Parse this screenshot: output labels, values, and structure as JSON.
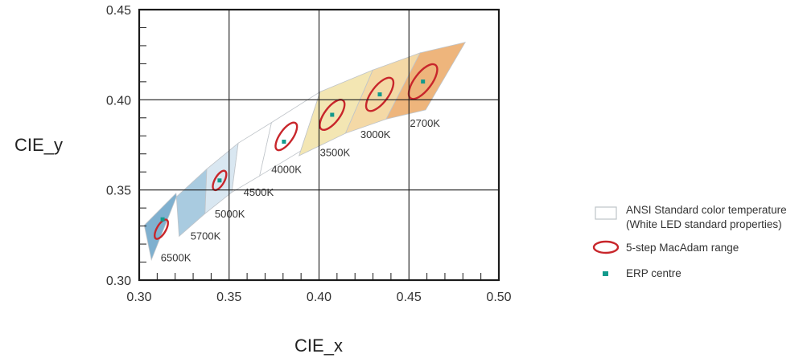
{
  "chart_data": {
    "type": "scatter",
    "title": "",
    "xlabel": "CIE_x",
    "ylabel": "CIE_y",
    "xlim": [
      0.3,
      0.5
    ],
    "ylim": [
      0.3,
      0.45
    ],
    "x_ticks": [
      "0.30",
      "0.35",
      "0.40",
      "0.45",
      "0.50"
    ],
    "y_ticks": [
      "0.30",
      "0.35",
      "0.40",
      "0.45"
    ],
    "grid": true,
    "ansi_quadrangles": [
      {
        "cct": "6500K",
        "color": "#7fb0cf",
        "corners": [
          [
            0.3028,
            0.3304
          ],
          [
            0.3205,
            0.3481
          ],
          [
            0.3207,
            0.3462
          ],
          [
            0.3068,
            0.3113
          ]
        ]
      },
      {
        "cct": "5700K",
        "color": "#a9cbe0",
        "corners": [
          [
            0.3207,
            0.3462
          ],
          [
            0.3376,
            0.3616
          ],
          [
            0.3366,
            0.3369
          ],
          [
            0.3222,
            0.3243
          ]
        ]
      },
      {
        "cct": "5000K",
        "color": "#d9e7f1",
        "corners": [
          [
            0.3376,
            0.3616
          ],
          [
            0.3551,
            0.376
          ],
          [
            0.3515,
            0.3487
          ],
          [
            0.3366,
            0.3369
          ]
        ]
      },
      {
        "cct": "4500K",
        "color": "#ffffff",
        "corners": [
          [
            0.3551,
            0.376
          ],
          [
            0.3736,
            0.3874
          ],
          [
            0.367,
            0.3578
          ],
          [
            0.3515,
            0.3487
          ]
        ]
      },
      {
        "cct": "4000K",
        "color": "#ffffff",
        "corners": [
          [
            0.3736,
            0.3874
          ],
          [
            0.4006,
            0.4044
          ],
          [
            0.3898,
            0.3716
          ],
          [
            0.367,
            0.3578
          ]
        ]
      },
      {
        "cct": "3500K",
        "color": "#f3e6b3",
        "corners": [
          [
            0.4006,
            0.4044
          ],
          [
            0.4299,
            0.4165
          ],
          [
            0.4147,
            0.3814
          ],
          [
            0.3889,
            0.369
          ]
        ]
      },
      {
        "cct": "3000K",
        "color": "#f4d9a6",
        "corners": [
          [
            0.4299,
            0.4165
          ],
          [
            0.4562,
            0.426
          ],
          [
            0.4373,
            0.3893
          ],
          [
            0.4147,
            0.3814
          ]
        ]
      },
      {
        "cct": "2700K",
        "color": "#eeb57c",
        "corners": [
          [
            0.4562,
            0.426
          ],
          [
            0.4813,
            0.4319
          ],
          [
            0.4593,
            0.3944
          ],
          [
            0.4373,
            0.3893
          ]
        ]
      }
    ],
    "macadam_ellipses": [
      {
        "cct": "6500K",
        "center": [
          0.3123,
          0.3282
        ],
        "a": 0.006,
        "b": 0.0025,
        "angle_deg": 60
      },
      {
        "cct": "5000K",
        "center": [
          0.3447,
          0.3553
        ],
        "a": 0.006,
        "b": 0.0026,
        "angle_deg": 60
      },
      {
        "cct": "4000K",
        "center": [
          0.3818,
          0.3797
        ],
        "a": 0.009,
        "b": 0.0036,
        "angle_deg": 55
      },
      {
        "cct": "3500K",
        "center": [
          0.4073,
          0.3917
        ],
        "a": 0.01,
        "b": 0.0042,
        "angle_deg": 53
      },
      {
        "cct": "3000K",
        "center": [
          0.4338,
          0.403
        ],
        "a": 0.011,
        "b": 0.0046,
        "angle_deg": 53
      },
      {
        "cct": "2700K",
        "center": [
          0.4578,
          0.4101
        ],
        "a": 0.0115,
        "b": 0.0048,
        "angle_deg": 53
      }
    ],
    "erp_centres": [
      {
        "cct": "6500K",
        "x": 0.313,
        "y": 0.3337
      },
      {
        "cct": "5000K",
        "x": 0.3447,
        "y": 0.3553
      },
      {
        "cct": "4000K",
        "x": 0.3805,
        "y": 0.3768
      },
      {
        "cct": "3500K",
        "x": 0.4073,
        "y": 0.3917
      },
      {
        "cct": "3000K",
        "x": 0.4338,
        "y": 0.403
      },
      {
        "cct": "2700K",
        "x": 0.4578,
        "y": 0.4101
      }
    ],
    "cct_labels": [
      {
        "text": "6500K",
        "x": 0.312,
        "y": 0.3105
      },
      {
        "text": "5700K",
        "x": 0.3285,
        "y": 0.3225
      },
      {
        "text": "5000K",
        "x": 0.342,
        "y": 0.3348
      },
      {
        "text": "4500K",
        "x": 0.358,
        "y": 0.3468
      },
      {
        "text": "4000K",
        "x": 0.3735,
        "y": 0.3595
      },
      {
        "text": "3500K",
        "x": 0.4005,
        "y": 0.3688
      },
      {
        "text": "3000K",
        "x": 0.423,
        "y": 0.3788
      },
      {
        "text": "2700K",
        "x": 0.4505,
        "y": 0.385
      }
    ],
    "legend": {
      "placement": "right",
      "items": [
        {
          "kind": "quad",
          "lines": [
            "ANSI Standard color temperature",
            "(White LED standard properties)"
          ]
        },
        {
          "kind": "ellipse",
          "lines": [
            "5-step MacAdam range"
          ]
        },
        {
          "kind": "square",
          "lines": [
            "ERP centre"
          ]
        }
      ]
    },
    "colors": {
      "ellipse": "#c8262b",
      "centre": "#139a8c",
      "grid": "#1a1a1a",
      "ansi_outline": "#bfc4c9"
    }
  }
}
